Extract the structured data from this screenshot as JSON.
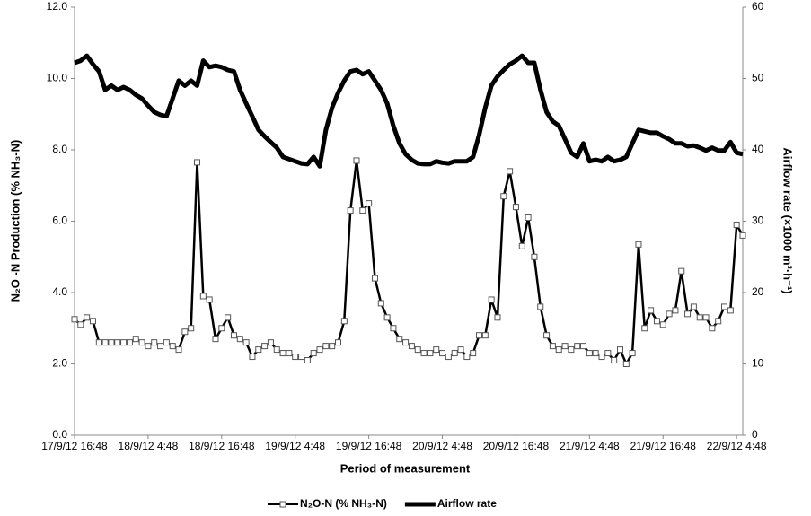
{
  "chart_data": {
    "type": "line",
    "xlabel": "Period of measurement",
    "ylabel": "N₂O -N Production (% NH₃-N)",
    "y2label": "Airflow rate (×1000 m³·h⁻¹)",
    "x": [
      "17/9/12 16:48",
      "17/9/12 17:48",
      "17/9/12 18:48",
      "17/9/12 19:48",
      "17/9/12 20:48",
      "17/9/12 21:48",
      "17/9/12 22:48",
      "17/9/12 23:48",
      "18/9/12 0:48",
      "18/9/12 1:48",
      "18/9/12 2:48",
      "18/9/12 3:48",
      "18/9/12 4:48",
      "18/9/12 5:48",
      "18/9/12 6:48",
      "18/9/12 7:48",
      "18/9/12 8:48",
      "18/9/12 9:48",
      "18/9/12 10:48",
      "18/9/12 11:48",
      "18/9/12 12:48",
      "18/9/12 13:48",
      "18/9/12 14:48",
      "18/9/12 15:48",
      "18/9/12 16:48",
      "18/9/12 17:48",
      "18/9/12 18:48",
      "18/9/12 19:48",
      "18/9/12 20:48",
      "18/9/12 21:48",
      "18/9/12 22:48",
      "18/9/12 23:48",
      "19/9/12 0:48",
      "19/9/12 1:48",
      "19/9/12 2:48",
      "19/9/12 3:48",
      "19/9/12 4:48",
      "19/9/12 5:48",
      "19/9/12 6:48",
      "19/9/12 7:48",
      "19/9/12 8:48",
      "19/9/12 9:48",
      "19/9/12 10:48",
      "19/9/12 11:48",
      "19/9/12 12:48",
      "19/9/12 13:48",
      "19/9/12 14:48",
      "19/9/12 15:48",
      "19/9/12 16:48",
      "19/9/12 17:48",
      "19/9/12 18:48",
      "19/9/12 19:48",
      "19/9/12 20:48",
      "19/9/12 21:48",
      "19/9/12 22:48",
      "19/9/12 23:48",
      "20/9/12 0:48",
      "20/9/12 1:48",
      "20/9/12 2:48",
      "20/9/12 3:48",
      "20/9/12 4:48",
      "20/9/12 5:48",
      "20/9/12 6:48",
      "20/9/12 7:48",
      "20/9/12 8:48",
      "20/9/12 9:48",
      "20/9/12 10:48",
      "20/9/12 11:48",
      "20/9/12 12:48",
      "20/9/12 13:48",
      "20/9/12 14:48",
      "20/9/12 15:48",
      "20/9/12 16:48",
      "20/9/12 17:48",
      "20/9/12 18:48",
      "20/9/12 19:48",
      "20/9/12 20:48",
      "20/9/12 21:48",
      "20/9/12 22:48",
      "20/9/12 23:48",
      "21/9/12 0:48",
      "21/9/12 1:48",
      "21/9/12 2:48",
      "21/9/12 3:48",
      "21/9/12 4:48",
      "21/9/12 5:48",
      "21/9/12 6:48",
      "21/9/12 7:48",
      "21/9/12 8:48",
      "21/9/12 9:48",
      "21/9/12 10:48",
      "21/9/12 11:48",
      "21/9/12 12:48",
      "21/9/12 13:48",
      "21/9/12 14:48",
      "21/9/12 15:48",
      "21/9/12 16:48",
      "21/9/12 17:48",
      "21/9/12 18:48",
      "21/9/12 19:48",
      "21/9/12 20:48",
      "21/9/12 21:48",
      "21/9/12 22:48",
      "21/9/12 23:48",
      "22/9/12 0:48",
      "22/9/12 1:48",
      "22/9/12 2:48",
      "22/9/12 3:48",
      "22/9/12 4:48",
      "22/9/12 5:48"
    ],
    "xlim": [
      "17/9/12 16:48",
      "22/9/12 5:48"
    ],
    "xticks": [
      "17/9/12 16:48",
      "18/9/12 4:48",
      "18/9/12 16:48",
      "19/9/12 4:48",
      "19/9/12 16:48",
      "20/9/12 4:48",
      "20/9/12 16:48",
      "21/9/12 4:48",
      "21/9/12 16:48",
      "22/9/12 4:48"
    ],
    "ylim": [
      0,
      12
    ],
    "yticks": [
      {
        "value": 0,
        "label": "0.0"
      },
      {
        "value": 2,
        "label": "2.0"
      },
      {
        "value": 4,
        "label": "4.0"
      },
      {
        "value": 6,
        "label": "6.0"
      },
      {
        "value": 8,
        "label": "8.0"
      },
      {
        "value": 10,
        "label": "10.0"
      },
      {
        "value": 12,
        "label": "12.0"
      }
    ],
    "y2lim": [
      0,
      60
    ],
    "y2ticks": [
      0,
      10,
      20,
      30,
      40,
      50,
      60
    ],
    "legend": "bottom",
    "series": [
      {
        "name": "N₂O-N (% NH₃-N)",
        "color": "#000000",
        "marker": "square",
        "values": [
          3.25,
          3.1,
          3.3,
          3.2,
          2.6,
          2.6,
          2.6,
          2.6,
          2.6,
          2.6,
          2.7,
          2.6,
          2.5,
          2.6,
          2.5,
          2.6,
          2.5,
          2.4,
          2.9,
          3.0,
          7.65,
          3.9,
          3.8,
          2.7,
          3.0,
          3.3,
          2.8,
          2.7,
          2.6,
          2.2,
          2.4,
          2.5,
          2.6,
          2.4,
          2.3,
          2.3,
          2.2,
          2.2,
          2.1,
          2.3,
          2.4,
          2.5,
          2.5,
          2.6,
          3.2,
          6.3,
          7.7,
          6.3,
          6.5,
          4.4,
          3.7,
          3.3,
          3.0,
          2.7,
          2.6,
          2.5,
          2.4,
          2.3,
          2.3,
          2.4,
          2.3,
          2.2,
          2.3,
          2.4,
          2.2,
          2.3,
          2.8,
          2.8,
          3.8,
          3.3,
          6.7,
          7.4,
          6.4,
          5.3,
          6.1,
          5.0,
          3.6,
          2.8,
          2.5,
          2.4,
          2.5,
          2.4,
          2.5,
          2.5,
          2.3,
          2.3,
          2.2,
          2.3,
          2.1,
          2.4,
          2.0,
          2.3,
          5.35,
          3.0,
          3.5,
          3.2,
          3.1,
          3.4,
          3.5,
          4.6,
          3.4,
          3.6,
          3.3,
          3.3,
          3.0,
          3.2,
          3.6,
          3.5,
          5.9,
          5.6
        ]
      },
      {
        "name": "Airflow rate",
        "color": "#000000",
        "axis": "y2",
        "values": [
          52.2,
          52.5,
          53.2,
          52,
          51,
          48.4,
          49,
          48.4,
          48.8,
          48.4,
          47.7,
          47.2,
          46.2,
          45.3,
          44.9,
          44.7,
          47.2,
          49.7,
          49,
          49.7,
          49,
          52.5,
          51.6,
          51.8,
          51.6,
          51.2,
          51,
          48.4,
          46.5,
          44.7,
          42.8,
          41.9,
          41.1,
          40.3,
          39,
          38.7,
          38.4,
          38.1,
          38,
          39,
          37.7,
          42.8,
          45.9,
          48,
          49.7,
          51,
          51.2,
          50.6,
          51,
          49.7,
          48.4,
          46.5,
          43.4,
          40.9,
          39.4,
          38.6,
          38.1,
          38,
          38,
          38.4,
          38.2,
          38.1,
          38.4,
          38.4,
          38.4,
          39,
          42.1,
          45.9,
          49,
          50.3,
          51.2,
          52,
          52.5,
          53.2,
          52.2,
          52.2,
          48.4,
          45.3,
          44,
          43.4,
          41.5,
          39.6,
          39,
          40.9,
          38.4,
          38.6,
          38.4,
          39,
          38.4,
          38.6,
          39,
          40.9,
          42.8,
          42.6,
          42.4,
          42.4,
          41.9,
          41.5,
          40.9,
          40.9,
          40.5,
          40.6,
          40.3,
          39.9,
          40.3,
          39.9,
          39.9,
          41.1,
          39.6,
          39.4
        ]
      }
    ]
  }
}
